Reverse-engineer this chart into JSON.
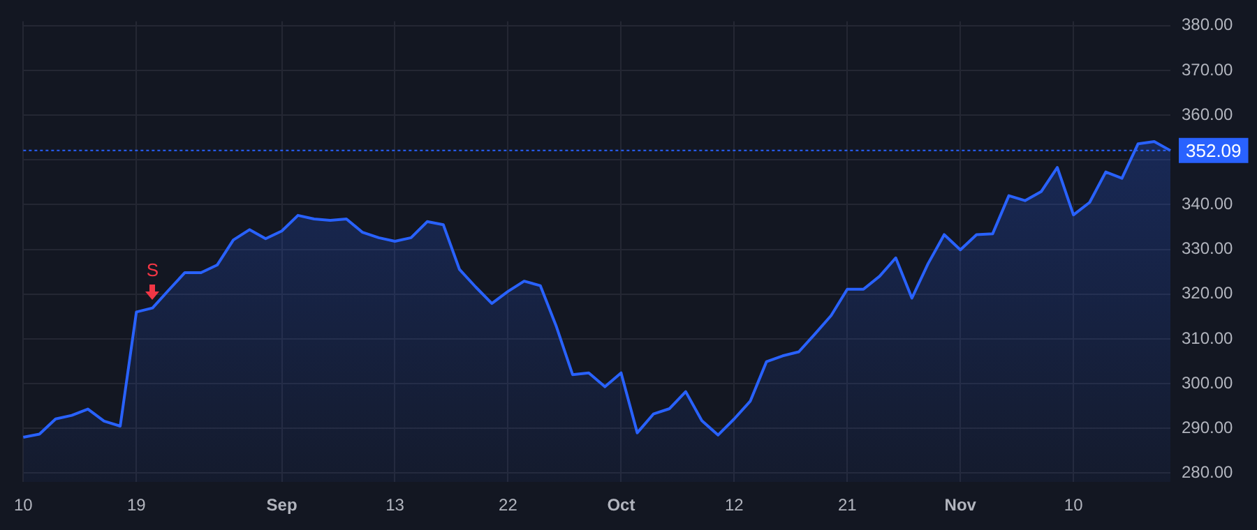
{
  "chart_data": {
    "type": "area",
    "categories": [
      "10",
      null,
      null,
      null,
      null,
      null,
      null,
      "19",
      null,
      null,
      null,
      null,
      null,
      null,
      null,
      null,
      "Sep",
      null,
      null,
      null,
      null,
      null,
      null,
      "13",
      null,
      null,
      null,
      null,
      null,
      null,
      "22",
      null,
      null,
      null,
      null,
      null,
      null,
      "Oct",
      null,
      null,
      null,
      null,
      null,
      null,
      "12",
      null,
      null,
      null,
      null,
      null,
      null,
      "21",
      null,
      null,
      null,
      null,
      null,
      null,
      "Nov",
      null,
      null,
      null,
      null,
      null,
      null,
      "10",
      null,
      null,
      null,
      null,
      null,
      null
    ],
    "series": [
      {
        "color": "#2962ff",
        "values": [
          288.0,
          288.7,
          292.1,
          292.9,
          294.3,
          291.6,
          290.5,
          316.0,
          316.9,
          320.9,
          324.8,
          324.8,
          326.5,
          332.1,
          334.4,
          332.4,
          334.1,
          337.6,
          336.8,
          336.5,
          336.8,
          333.8,
          332.6,
          331.8,
          332.6,
          336.2,
          335.5,
          325.5,
          321.6,
          317.9,
          320.6,
          322.9,
          321.9,
          312.7,
          302.0,
          302.4,
          299.3,
          302.4,
          289.0,
          293.2,
          294.4,
          298.2,
          291.7,
          288.5,
          292.1,
          296.1,
          304.9,
          306.2,
          307.1,
          311.1,
          315.2,
          321.1,
          321.1,
          324.0,
          328.1,
          319.1,
          326.8,
          333.3,
          329.9,
          333.3,
          333.5,
          342.0,
          340.9,
          342.9,
          348.3,
          337.7,
          340.5,
          347.3,
          345.9,
          353.6,
          354.1,
          352.09
        ]
      }
    ],
    "ylim": [
      278,
      381
    ],
    "yticks": [
      {
        "value": 280,
        "label": "280.00"
      },
      {
        "value": 290,
        "label": "290.00"
      },
      {
        "value": 300,
        "label": "300.00"
      },
      {
        "value": 310,
        "label": "310.00"
      },
      {
        "value": 320,
        "label": "320.00"
      },
      {
        "value": 330,
        "label": "330.00"
      },
      {
        "value": 340,
        "label": "340.00"
      },
      {
        "value": 350,
        "label": null
      },
      {
        "value": 360,
        "label": "360.00"
      },
      {
        "value": 370,
        "label": "370.00"
      },
      {
        "value": 380,
        "label": "380.00"
      }
    ],
    "grid": true,
    "ref_lines": [
      {
        "axis": "y",
        "value": 352.09,
        "label": "352.09",
        "color": "#2962ff",
        "line_style": "dotted"
      }
    ],
    "annotations": [
      {
        "text": "S",
        "y": 316.9
      }
    ]
  }
}
